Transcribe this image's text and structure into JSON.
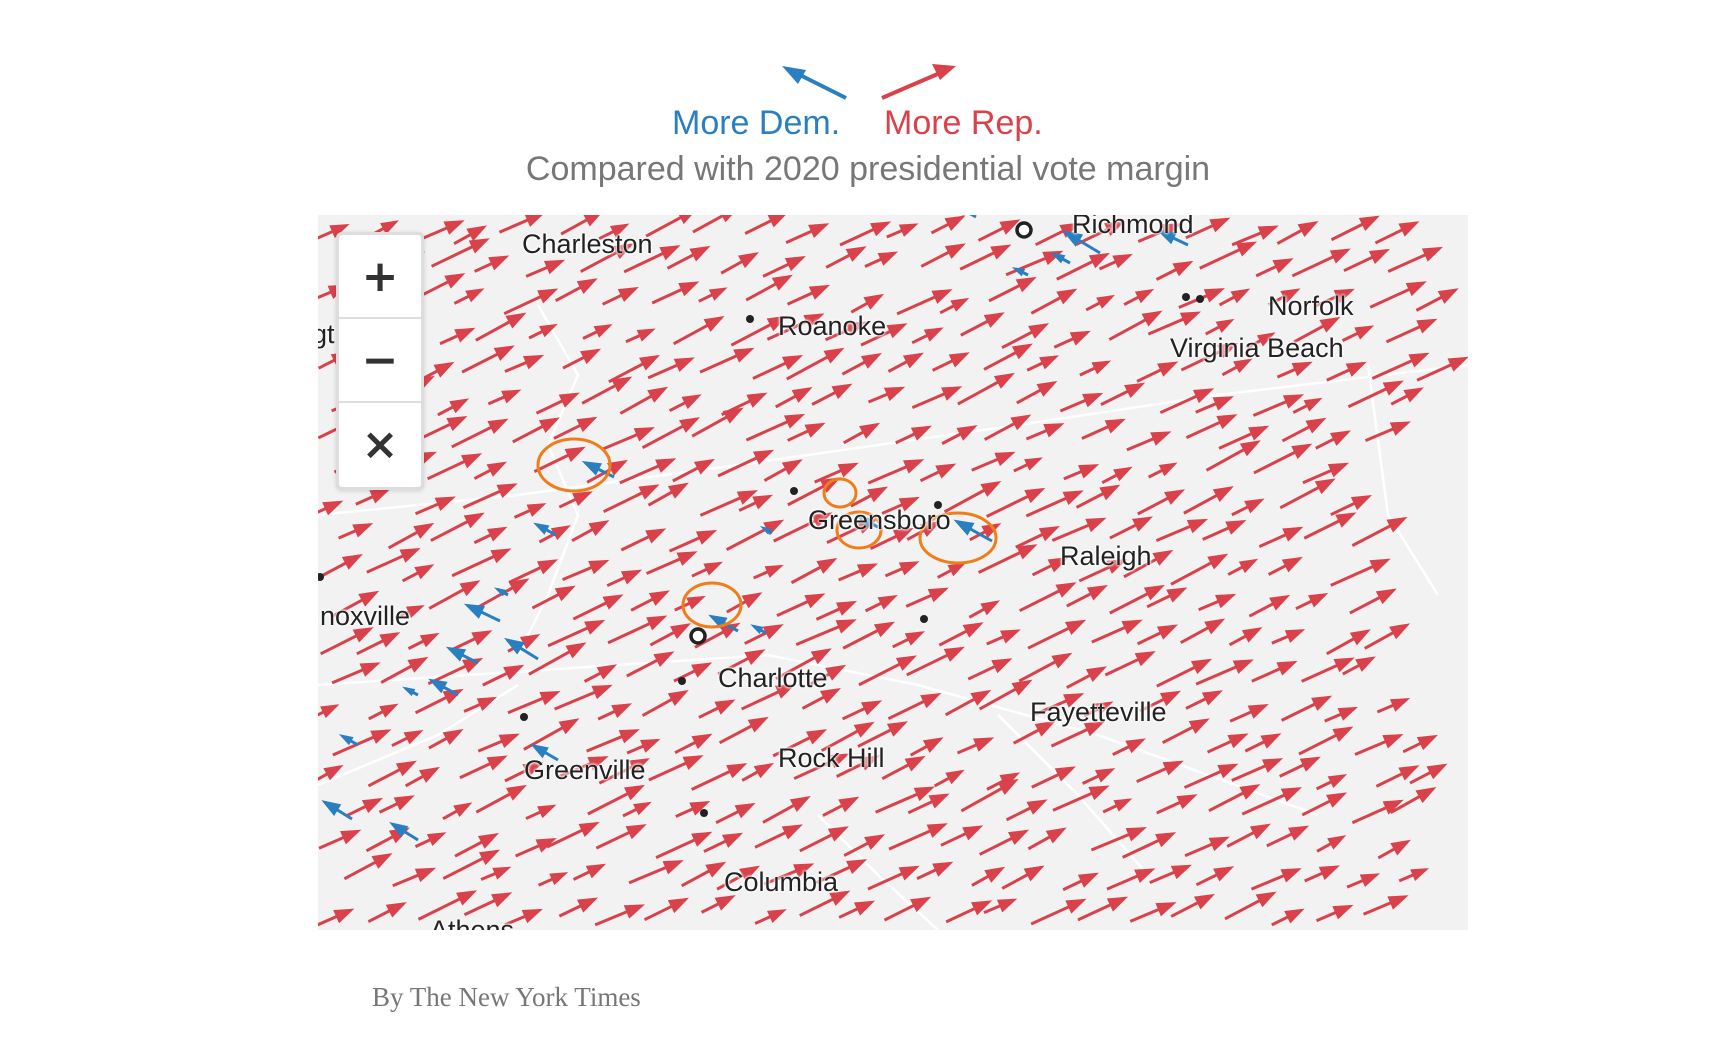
{
  "legend": {
    "dem_label": "More Dem.",
    "rep_label": "More Rep.",
    "subtitle": "Compared with 2020 presidential vote margin",
    "dem_color": "#2a7fc1",
    "rep_color": "#d9414b"
  },
  "map": {
    "background": "#f2f2f2",
    "cities": [
      {
        "name": "Charleston",
        "marker": "ring"
      },
      {
        "name": "Richmond",
        "marker": "ring"
      },
      {
        "name": "Roanoke",
        "marker": "dot"
      },
      {
        "name": "Norfolk",
        "marker": "dot"
      },
      {
        "name": "Virginia Beach",
        "marker": "dot"
      },
      {
        "name": "Greensboro",
        "marker": "dot"
      },
      {
        "name": "Raleigh",
        "marker": "dot"
      },
      {
        "name": "noxville",
        "marker": "dot"
      },
      {
        "name": "Charlotte",
        "marker": "ring"
      },
      {
        "name": "Fayetteville",
        "marker": "dot"
      },
      {
        "name": "Rock Hill",
        "marker": "dot"
      },
      {
        "name": "Greenville",
        "marker": "dot"
      },
      {
        "name": "Columbia",
        "marker": "dot"
      },
      {
        "name": "gt",
        "marker": "none"
      },
      {
        "name": "Athens",
        "marker": "none"
      }
    ],
    "highlight_color": "#f07d1a"
  },
  "controls": {
    "zoom_in": "+",
    "zoom_out": "−",
    "reset": "×"
  },
  "credit": "By The New York Times"
}
